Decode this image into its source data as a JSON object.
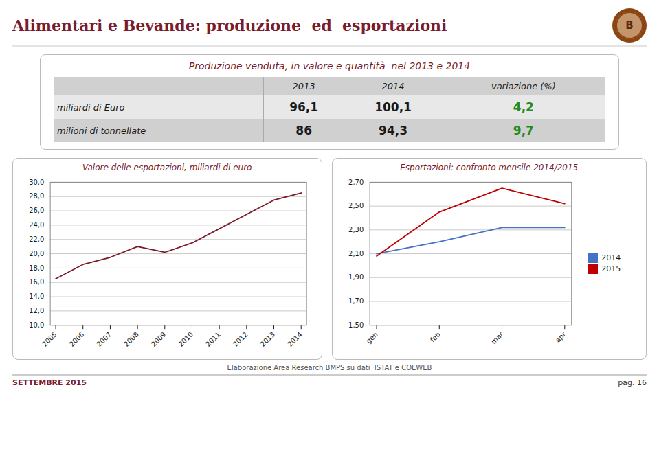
{
  "title": "Alimentari e Bevande: produzione  ed  esportazioni",
  "title_color": "#7B1B2B",
  "logo": "B",
  "table": {
    "title": "Produzione venduta, in valore e quantità  nel 2013 e 2014",
    "columns": [
      "2013",
      "2014",
      "variazione (%)"
    ],
    "rows": [
      [
        "miliardi di Euro",
        "96,1",
        "100,1",
        "4,2"
      ],
      [
        "milioni di tonnellate",
        "86",
        "94,3",
        "9,7"
      ]
    ],
    "change_color": "#228B22"
  },
  "chart_data": [
    {
      "type": "line",
      "title": "Valore delle esportazioni, miliardi di euro",
      "x": [
        2005,
        2006,
        2007,
        2008,
        2009,
        2010,
        2011,
        2012,
        2013,
        2014
      ],
      "values": [
        16.5,
        18.5,
        19.5,
        21.0,
        20.2,
        21.5,
        23.5,
        25.5,
        27.5,
        28.5
      ],
      "color": "#7B1B2B",
      "xlim": [
        2004.8,
        2014.2
      ],
      "xticks": [
        2005,
        2006,
        2007,
        2008,
        2009,
        2010,
        2011,
        2012,
        2013,
        2014
      ],
      "ylim": [
        10.0,
        30.0
      ],
      "yticks": [
        {
          "value": 10.0,
          "label": "10,0"
        },
        {
          "value": 12.0,
          "label": "12,0"
        },
        {
          "value": 14.0,
          "label": "14,0"
        },
        {
          "value": 16.0,
          "label": "16,0"
        },
        {
          "value": 18.0,
          "label": "18,0"
        },
        {
          "value": 20.0,
          "label": "20,0"
        },
        {
          "value": 22.0,
          "label": "22,0"
        },
        {
          "value": 24.0,
          "label": "24,0"
        },
        {
          "value": 26.0,
          "label": "26,0"
        },
        {
          "value": 28.0,
          "label": "28,0"
        },
        {
          "value": 30.0,
          "label": "30,0"
        }
      ],
      "grid": true
    },
    {
      "type": "line",
      "title": "Esportazioni: confronto mensile 2014/2015",
      "categories": [
        "gen",
        "feb",
        "mar",
        "apr"
      ],
      "series": [
        {
          "name": "2014",
          "color": "#4472C4",
          "values": [
            2.1,
            2.2,
            2.32,
            2.32
          ]
        },
        {
          "name": "2015",
          "color": "#C00000",
          "values": [
            2.08,
            2.45,
            2.65,
            2.52
          ]
        }
      ],
      "ylim": [
        1.5,
        2.7
      ],
      "yticks": [
        {
          "value": 1.5,
          "label": "1,50"
        },
        {
          "value": 1.7,
          "label": "1,70"
        },
        {
          "value": 1.9,
          "label": "1,90"
        },
        {
          "value": 2.1,
          "label": "2,10"
        },
        {
          "value": 2.3,
          "label": "2,30"
        },
        {
          "value": 2.5,
          "label": "2,50"
        },
        {
          "value": 2.7,
          "label": "2,70"
        }
      ],
      "grid": true,
      "legend": "right"
    }
  ],
  "source": "Elaborazione Area Research BMPS su dati  ISTAT e COEWEB",
  "footer_left": "SETTEMBRE 2015",
  "footer_right": "pag. 16"
}
